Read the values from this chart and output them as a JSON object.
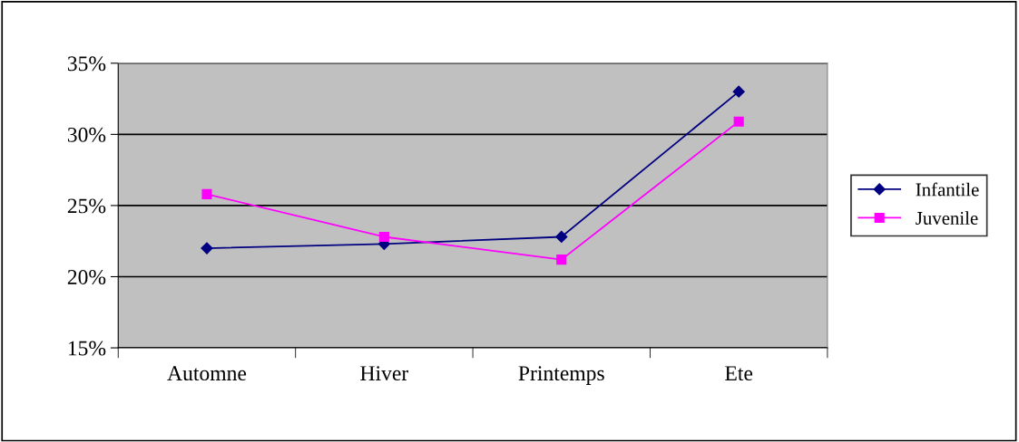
{
  "chart_data": {
    "type": "line",
    "categories": [
      "Automne",
      "Hiver",
      "Printemps",
      "Ete"
    ],
    "series": [
      {
        "name": "Infantile",
        "color": "#000080",
        "marker": "diamond",
        "values": [
          22.0,
          22.3,
          22.8,
          33.0
        ]
      },
      {
        "name": "Juvenile",
        "color": "#ff00ff",
        "marker": "square",
        "values": [
          25.8,
          22.8,
          21.2,
          30.9
        ]
      }
    ],
    "ylim": [
      15,
      35
    ],
    "yticks": [
      {
        "value": 15,
        "label": "15%"
      },
      {
        "value": 20,
        "label": "20%"
      },
      {
        "value": 25,
        "label": "25%"
      },
      {
        "value": 30,
        "label": "30%"
      },
      {
        "value": 35,
        "label": "35%"
      }
    ],
    "grid": "y",
    "legend": "right"
  }
}
